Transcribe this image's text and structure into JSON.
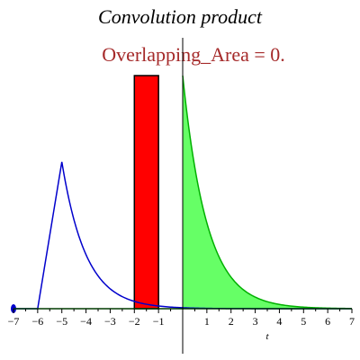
{
  "chart_data": {
    "type": "line",
    "title": "Convolution product",
    "annotation": "Overlapping_Area = 0.",
    "xlabel": "t",
    "ylabel": "",
    "xlim": [
      -7,
      7
    ],
    "ylim": [
      0,
      1
    ],
    "x_ticks": [
      "−7",
      "−6",
      "−5",
      "−4",
      "−3",
      "−2",
      "−1",
      "1",
      "2",
      "3",
      "4",
      "5",
      "6",
      "7"
    ],
    "x_tick_values": [
      -7,
      -6,
      -5,
      -4,
      -3,
      -2,
      -1,
      1,
      2,
      3,
      4,
      5,
      6,
      7
    ],
    "grid": false,
    "series": [
      {
        "kind": "exponential-decay-area",
        "function": "exp(-t) for t >= 0, 0 for t < 0",
        "color": "#66ff66",
        "stroke": "#00b000",
        "x": [
          0,
          0.5,
          1,
          1.5,
          2,
          2.5,
          3,
          4,
          5,
          6,
          7
        ],
        "y": [
          1,
          0.61,
          0.37,
          0.22,
          0.14,
          0.08,
          0.05,
          0.02,
          0.01,
          0.002,
          0.001
        ]
      },
      {
        "kind": "sliding-rectangle",
        "color": "#ff0000",
        "stroke": "#000000",
        "x_range": [
          -2,
          -1
        ],
        "height": 1
      },
      {
        "kind": "blue-curve",
        "color": "#0000cc",
        "x": [
          -7,
          -6,
          -5.5,
          -5,
          -4.5,
          -4,
          -3.5,
          -3,
          -2.5,
          -2,
          -1.5,
          -1,
          0,
          1,
          2,
          3,
          4,
          5,
          6,
          7
        ],
        "y": [
          0,
          0,
          0.39,
          0.63,
          0.38,
          0.23,
          0.14,
          0.09,
          0.05,
          0.03,
          0.02,
          0.01,
          0,
          0,
          0,
          0,
          0,
          0,
          0,
          0
        ]
      }
    ]
  },
  "colors": {
    "annotation": "#a52a2a",
    "axis": "#000000"
  }
}
